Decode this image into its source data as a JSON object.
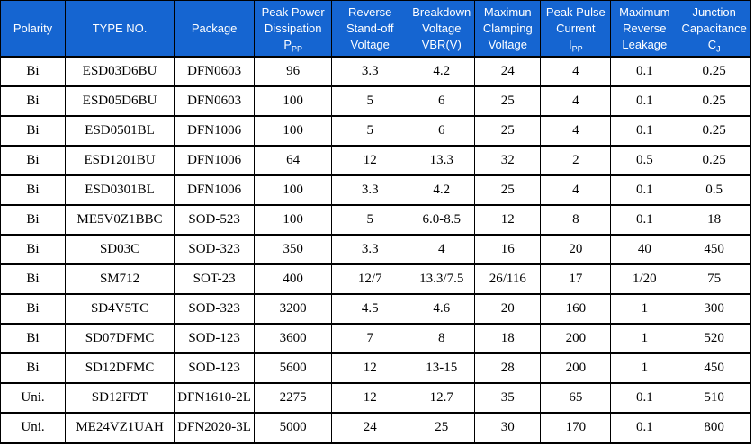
{
  "colors": {
    "header_bg": "#1565d1",
    "header_text": "#ffffff",
    "body_text": "#000000",
    "border": "#000000",
    "page_bg": "#ffffff"
  },
  "table": {
    "columns": [
      {
        "id": "polarity",
        "width": 72,
        "label_lines": [
          "Polarity"
        ]
      },
      {
        "id": "type-no",
        "width": 121,
        "label_lines": [
          "TYPE NO."
        ]
      },
      {
        "id": "package",
        "width": 89,
        "label_lines": [
          "Package"
        ]
      },
      {
        "id": "peak-power",
        "width": 86,
        "label_lines": [
          "Peak Power",
          "Dissipation",
          {
            "main": "P",
            "sub": "PP"
          }
        ]
      },
      {
        "id": "reverse-standoff",
        "width": 85,
        "label_lines": [
          "Reverse",
          "Stand-off",
          "Voltage"
        ]
      },
      {
        "id": "breakdown-voltage",
        "width": 74,
        "label_lines": [
          "Breakdown",
          "Voltage",
          "VBR(V)"
        ]
      },
      {
        "id": "clamping-voltage",
        "width": 73,
        "label_lines": [
          "Maximun",
          "Clamping",
          "Voltage"
        ]
      },
      {
        "id": "peak-pulse-current",
        "width": 78,
        "label_lines": [
          "Peak Pulse",
          "Current",
          {
            "main": "I",
            "sub": "PP"
          }
        ]
      },
      {
        "id": "reverse-leakage",
        "width": 75,
        "label_lines": [
          "Maximum",
          "Reverse",
          "Leakage"
        ]
      },
      {
        "id": "junction-capacitance",
        "width": 80,
        "label_lines": [
          "Junction",
          "Capacitance",
          {
            "main": "C",
            "sub": "J"
          }
        ]
      }
    ],
    "rows": [
      [
        "Bi",
        "ESD03D6BU",
        "DFN0603",
        "96",
        "3.3",
        "4.2",
        "24",
        "4",
        "0.1",
        "0.25"
      ],
      [
        "Bi",
        "ESD05D6BU",
        "DFN0603",
        "100",
        "5",
        "6",
        "25",
        "4",
        "0.1",
        "0.25"
      ],
      [
        "Bi",
        "ESD0501BL",
        "DFN1006",
        "100",
        "5",
        "6",
        "25",
        "4",
        "0.1",
        "0.25"
      ],
      [
        "Bi",
        "ESD1201BU",
        "DFN1006",
        "64",
        "12",
        "13.3",
        "32",
        "2",
        "0.5",
        "0.25"
      ],
      [
        "Bi",
        "ESD0301BL",
        "DFN1006",
        "100",
        "3.3",
        "4.2",
        "25",
        "4",
        "0.1",
        "0.5"
      ],
      [
        "Bi",
        "ME5V0Z1BBC",
        "SOD-523",
        "100",
        "5",
        "6.0-8.5",
        "12",
        "8",
        "0.1",
        "18"
      ],
      [
        "Bi",
        "SD03C",
        "SOD-323",
        "350",
        "3.3",
        "4",
        "16",
        "20",
        "40",
        "450"
      ],
      [
        "Bi",
        "SM712",
        "SOT-23",
        "400",
        "12/7",
        "13.3/7.5",
        "26/116",
        "17",
        "1/20",
        "75"
      ],
      [
        "Bi",
        "SD4V5TC",
        "SOD-323",
        "3200",
        "4.5",
        "4.6",
        "20",
        "160",
        "1",
        "300"
      ],
      [
        "Bi",
        "SD07DFMC",
        "SOD-123",
        "3600",
        "7",
        "8",
        "18",
        "200",
        "1",
        "520"
      ],
      [
        "Bi",
        "SD12DFMC",
        "SOD-123",
        "5600",
        "12",
        "13-15",
        "28",
        "200",
        "1",
        "450"
      ],
      [
        "Uni.",
        "SD12FDT",
        "DFN1610-2L",
        "2275",
        "12",
        "12.7",
        "35",
        "65",
        "0.1",
        "510"
      ],
      [
        "Uni.",
        "ME24VZ1UAH",
        "DFN2020-3L",
        "5000",
        "24",
        "25",
        "30",
        "170",
        "0.1",
        "800"
      ]
    ]
  }
}
